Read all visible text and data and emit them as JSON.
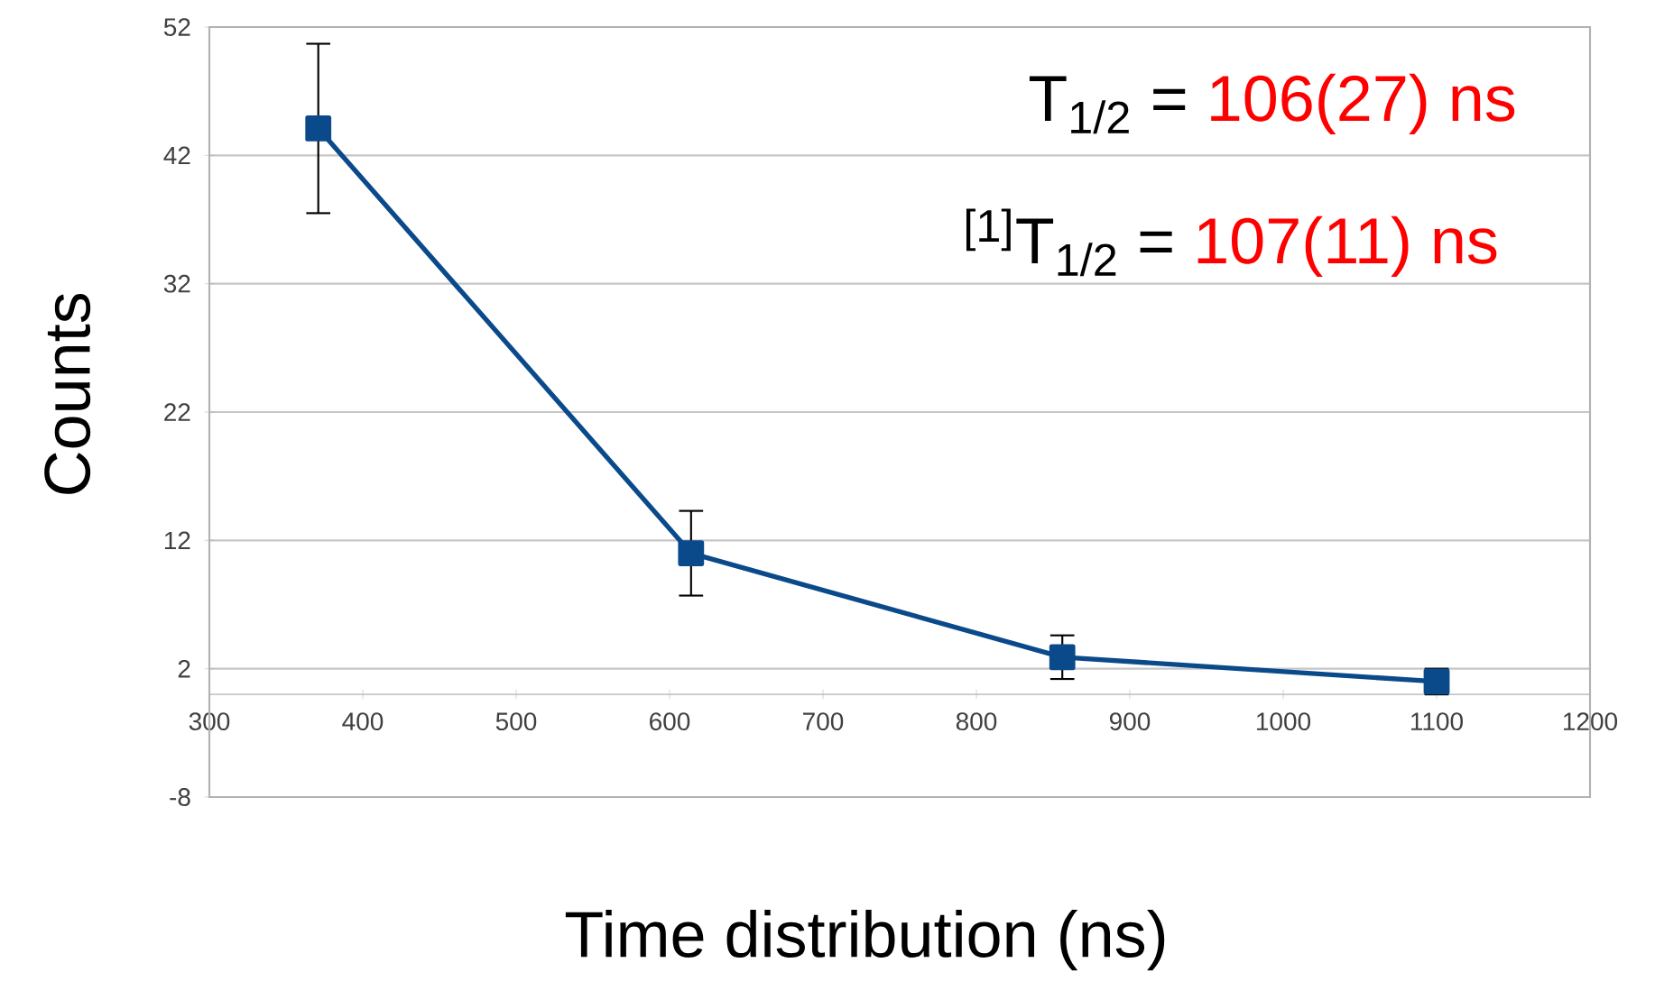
{
  "chart_data": {
    "type": "line",
    "xlabel": "Time distribution (ns)",
    "ylabel": "Counts",
    "x": [
      371,
      614,
      856,
      1100
    ],
    "series": [
      {
        "color": "#0b4a8a",
        "values": [
          44.1,
          11.0,
          2.9,
          1.0
        ],
        "errors": [
          6.6,
          3.3,
          1.7,
          1.0
        ]
      }
    ],
    "xlim": [
      300,
      1200
    ],
    "xticks": [
      300,
      400,
      500,
      600,
      700,
      800,
      900,
      1000,
      1100,
      1200
    ],
    "ylim": [
      -8,
      52
    ],
    "yticks": [
      -8,
      2,
      12,
      22,
      32,
      42,
      52
    ],
    "grid": "y",
    "marker": "square",
    "line_style": "solid",
    "annotations": [
      "T$_{1/2}$ =",
      "106(27) ns",
      "$^{[1]}$T$_{1/2}$ =",
      "107(11) ns"
    ]
  }
}
